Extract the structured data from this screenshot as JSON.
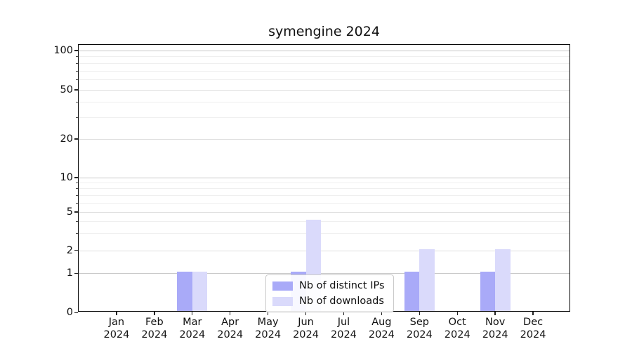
{
  "title": "symengine 2024",
  "legend": {
    "items": [
      {
        "label": "Nb of distinct IPs",
        "color": "#a9aaf8"
      },
      {
        "label": "Nb of downloads",
        "color": "#dadafb"
      }
    ]
  },
  "chart_data": {
    "type": "bar",
    "title": "symengine 2024",
    "categories": [
      "Jan",
      "Feb",
      "Mar",
      "Apr",
      "May",
      "Jun",
      "Jul",
      "Aug",
      "Sep",
      "Oct",
      "Nov",
      "Dec"
    ],
    "x_tick_second_line": "2024",
    "series": [
      {
        "name": "Nb of distinct IPs",
        "color": "#a9aaf8",
        "values": [
          0,
          0,
          1,
          0,
          0,
          1,
          0,
          0,
          1,
          0,
          1,
          0
        ]
      },
      {
        "name": "Nb of downloads",
        "color": "#dadafb",
        "values": [
          0,
          0,
          1,
          0,
          0,
          4,
          0,
          0,
          2,
          0,
          2,
          0
        ]
      }
    ],
    "y_axis": {
      "scale": "symlog",
      "major_ticks": [
        0,
        1,
        2,
        5,
        10,
        20,
        50,
        100
      ],
      "minor_ticks": [
        3,
        4,
        6,
        7,
        8,
        9,
        30,
        40,
        60,
        70,
        80,
        90
      ],
      "range": [
        0,
        110
      ]
    },
    "grid": true,
    "legend_position": "lower-center-inside",
    "bar_colors": {
      "distinct_ips": "#a9aaf8",
      "downloads": "#dadafb"
    },
    "grid_colors": {
      "minor": "#efefef",
      "major": "#dedede",
      "power10": "#c9c9c9"
    }
  }
}
